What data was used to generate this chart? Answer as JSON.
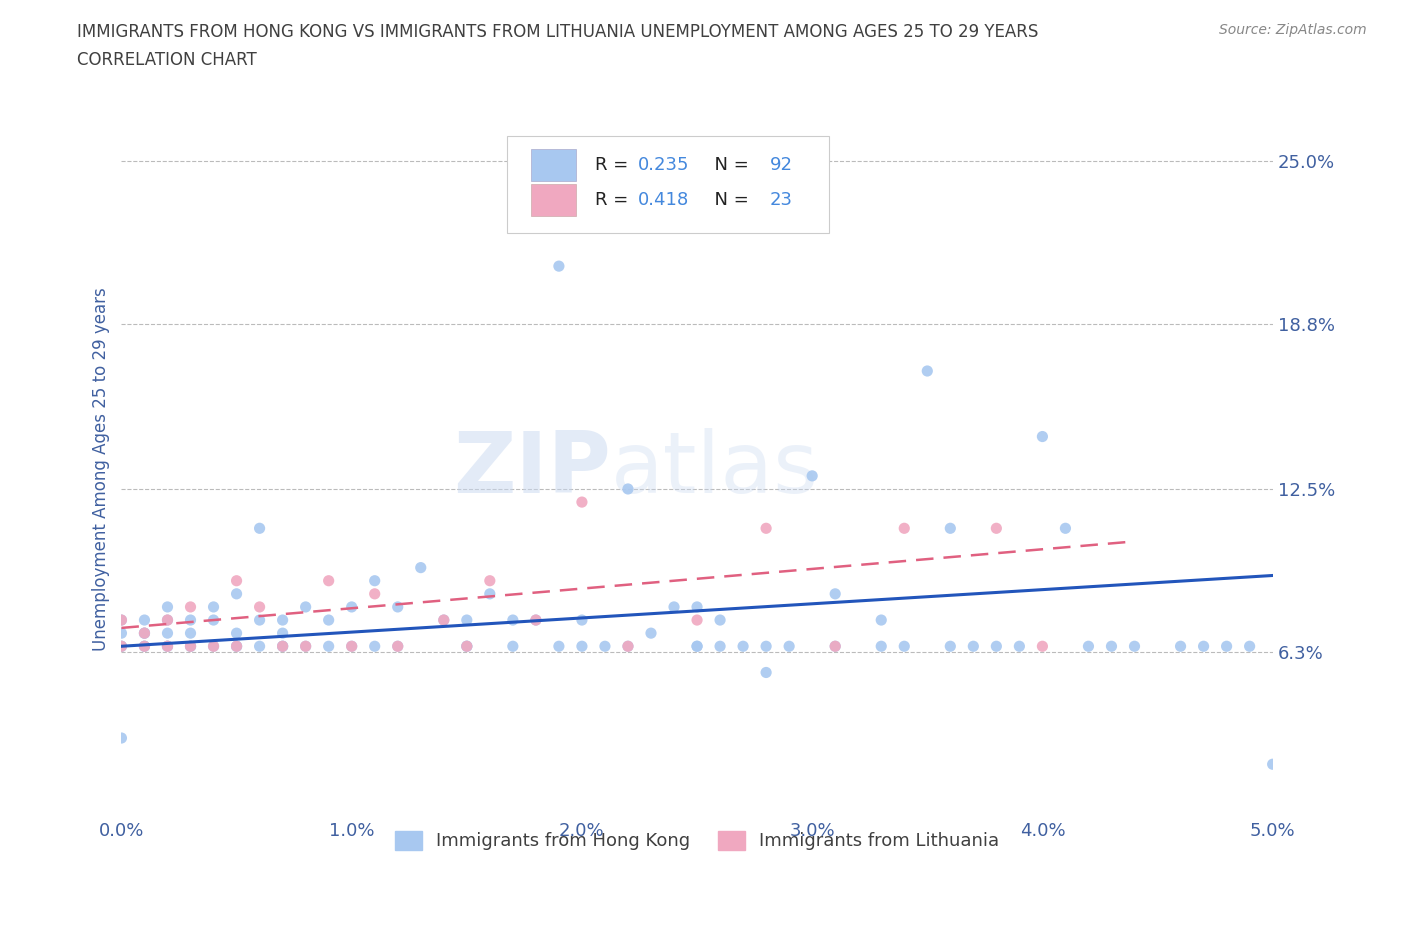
{
  "title_line1": "IMMIGRANTS FROM HONG KONG VS IMMIGRANTS FROM LITHUANIA UNEMPLOYMENT AMONG AGES 25 TO 29 YEARS",
  "title_line2": "CORRELATION CHART",
  "source": "Source: ZipAtlas.com",
  "ylabel": "Unemployment Among Ages 25 to 29 years",
  "xlim": [
    0.0,
    0.05
  ],
  "ylim": [
    0.0,
    0.265
  ],
  "yticks": [
    0.063,
    0.125,
    0.188,
    0.25
  ],
  "ytick_labels": [
    "6.3%",
    "12.5%",
    "18.8%",
    "25.0%"
  ],
  "xticks": [
    0.0,
    0.01,
    0.02,
    0.03,
    0.04,
    0.05
  ],
  "xtick_labels": [
    "0.0%",
    "1.0%",
    "2.0%",
    "3.0%",
    "4.0%",
    "5.0%"
  ],
  "hk_color": "#a8c8f0",
  "lt_color": "#f0a8c0",
  "hk_line_color": "#2255bb",
  "lt_line_color": "#e06080",
  "legend_label1": "Immigrants from Hong Kong",
  "legend_label2": "Immigrants from Lithuania",
  "legend_R_color": "#4488dd",
  "legend_N_color": "#4488dd",
  "watermark": "ZIPatlas",
  "title_color": "#404040",
  "axis_label_color": "#4060a0",
  "grid_color": "#bbbbbb",
  "hk_x": [
    0.0,
    0.0,
    0.0,
    0.0,
    0.001,
    0.001,
    0.001,
    0.001,
    0.001,
    0.002,
    0.002,
    0.002,
    0.002,
    0.003,
    0.003,
    0.003,
    0.003,
    0.004,
    0.004,
    0.004,
    0.005,
    0.005,
    0.005,
    0.006,
    0.006,
    0.006,
    0.007,
    0.007,
    0.007,
    0.008,
    0.008,
    0.009,
    0.009,
    0.01,
    0.01,
    0.011,
    0.011,
    0.012,
    0.012,
    0.013,
    0.014,
    0.015,
    0.015,
    0.016,
    0.017,
    0.018,
    0.019,
    0.02,
    0.02,
    0.021,
    0.022,
    0.023,
    0.024,
    0.025,
    0.025,
    0.026,
    0.027,
    0.028,
    0.029,
    0.03,
    0.031,
    0.033,
    0.035,
    0.036,
    0.037,
    0.038,
    0.04,
    0.041,
    0.042,
    0.043,
    0.044,
    0.046,
    0.047,
    0.048,
    0.049,
    0.05,
    0.033,
    0.034,
    0.019,
    0.022,
    0.028,
    0.031,
    0.036,
    0.039,
    0.025,
    0.026,
    0.015,
    0.017,
    0.005,
    0.007,
    0.002,
    0.0
  ],
  "hk_y": [
    0.065,
    0.07,
    0.075,
    0.065,
    0.065,
    0.07,
    0.075,
    0.065,
    0.07,
    0.07,
    0.075,
    0.065,
    0.08,
    0.065,
    0.075,
    0.065,
    0.07,
    0.08,
    0.075,
    0.065,
    0.07,
    0.085,
    0.065,
    0.065,
    0.11,
    0.075,
    0.07,
    0.075,
    0.065,
    0.065,
    0.08,
    0.075,
    0.065,
    0.065,
    0.08,
    0.065,
    0.09,
    0.08,
    0.065,
    0.095,
    0.075,
    0.065,
    0.075,
    0.085,
    0.065,
    0.075,
    0.065,
    0.065,
    0.075,
    0.065,
    0.065,
    0.07,
    0.08,
    0.065,
    0.08,
    0.075,
    0.065,
    0.065,
    0.065,
    0.13,
    0.085,
    0.075,
    0.17,
    0.065,
    0.065,
    0.065,
    0.145,
    0.11,
    0.065,
    0.065,
    0.065,
    0.065,
    0.065,
    0.065,
    0.065,
    0.02,
    0.065,
    0.065,
    0.21,
    0.125,
    0.055,
    0.065,
    0.11,
    0.065,
    0.065,
    0.065,
    0.065,
    0.075,
    0.065,
    0.065,
    0.065,
    0.03
  ],
  "lt_x": [
    0.0,
    0.0,
    0.001,
    0.001,
    0.002,
    0.002,
    0.003,
    0.003,
    0.004,
    0.005,
    0.005,
    0.006,
    0.007,
    0.008,
    0.009,
    0.01,
    0.011,
    0.012,
    0.014,
    0.015,
    0.016,
    0.018,
    0.02,
    0.022,
    0.025,
    0.028,
    0.031,
    0.034,
    0.038,
    0.04
  ],
  "lt_y": [
    0.065,
    0.075,
    0.07,
    0.065,
    0.065,
    0.075,
    0.065,
    0.08,
    0.065,
    0.09,
    0.065,
    0.08,
    0.065,
    0.065,
    0.09,
    0.065,
    0.085,
    0.065,
    0.075,
    0.065,
    0.09,
    0.075,
    0.12,
    0.065,
    0.075,
    0.11,
    0.065,
    0.11,
    0.11,
    0.065
  ],
  "hk_line_x0": 0.0,
  "hk_line_x1": 0.05,
  "hk_line_y0": 0.065,
  "hk_line_y1": 0.092,
  "lt_line_x0": 0.0,
  "lt_line_x1": 0.044,
  "lt_line_y0": 0.072,
  "lt_line_y1": 0.105
}
